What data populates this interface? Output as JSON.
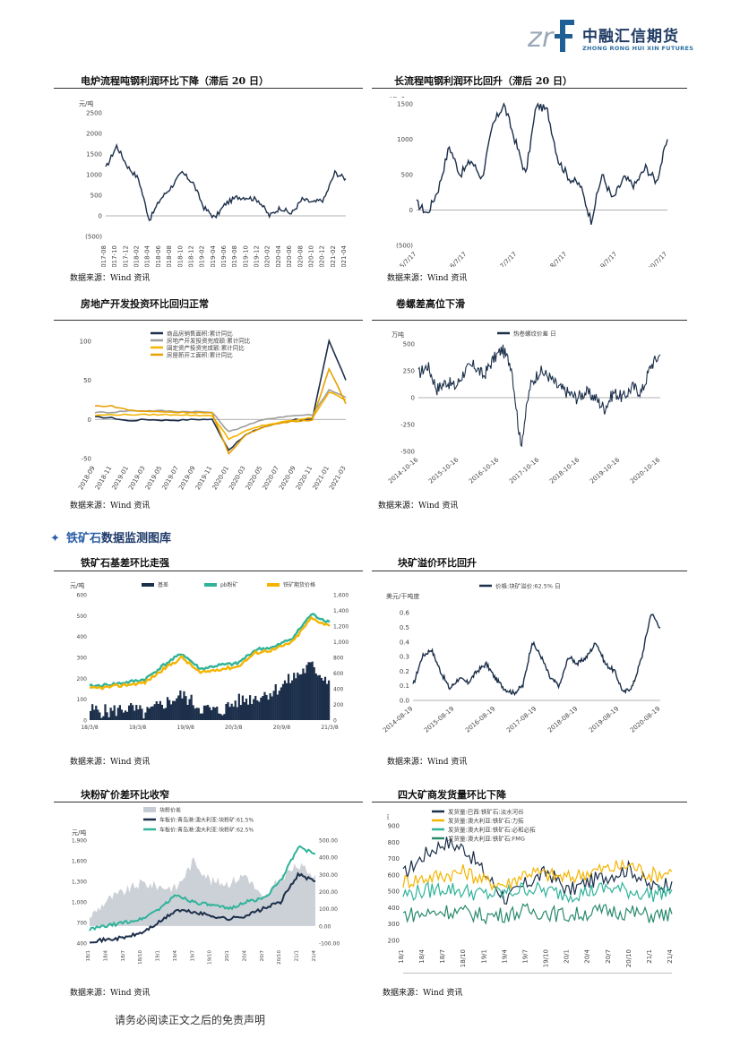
{
  "header": {
    "logo_cn": "中融汇信期货",
    "logo_en": "ZHONG RONG HUI XIN FUTURES",
    "logo_mark": "zrf-logo-mark"
  },
  "panels": [
    {
      "title": "电炉流程吨钢利润环比下降（滞后 20 日）",
      "source": "数据来源：Wind 资讯"
    },
    {
      "title": "长流程吨钢利润环比回升（滞后 20 日）",
      "source": "数据来源：Wind 资讯"
    },
    {
      "title": "房地产开发投资环比回归正常",
      "source": "数据来源：Wind 资讯"
    },
    {
      "title": "卷螺差高位下滑",
      "source": "数据来源：Wind 资讯"
    },
    {
      "title": "铁矿石基差环比走强",
      "source": "数据来源：Wind 资讯"
    },
    {
      "title": "块矿溢价环比回升",
      "source": "数据来源：Wind 资讯"
    },
    {
      "title": "块粉矿价差环比收窄",
      "source": "数据来源：Wind 资讯"
    },
    {
      "title": "四大矿商发货量环比下降",
      "source": "数据来源：Wind 资讯"
    }
  ],
  "section": {
    "bullet": "✦",
    "title_accent": "铁矿石",
    "title_rest": "数据监测图库"
  },
  "footer": {
    "disclaimer": "请务必阅读正文之后的免责声明"
  },
  "chart_data": [
    {
      "type": "line",
      "title": "电炉流程吨钢利润环比下降（滞后 20 日）",
      "ylabel": "元/吨",
      "yticks": [
        "2500",
        "2000",
        "1500",
        "1000",
        "500",
        "0",
        "(500)"
      ],
      "ylim": [
        -500,
        2500
      ],
      "x": [
        "2017-08",
        "2017-10",
        "2017-12",
        "2018-02",
        "2018-04",
        "2018-06",
        "2018-08",
        "2018-10",
        "2018-12",
        "2019-02",
        "2019-04",
        "2019-06",
        "2019-08",
        "2019-10",
        "2019-12",
        "2020-02",
        "2020-04",
        "2020-06",
        "2020-08",
        "2020-10",
        "2020-12",
        "2021-02",
        "2021-04"
      ],
      "series": [
        {
          "values": [
            1150,
            1700,
            1200,
            900,
            -100,
            400,
            700,
            1050,
            800,
            200,
            -50,
            300,
            450,
            450,
            380,
            0,
            200,
            50,
            400,
            320,
            400,
            1050,
            900
          ]
        }
      ],
      "color": "#1c2f4a"
    },
    {
      "type": "line",
      "title": "长流程吨钢利润环比回升（滞后 20 日）",
      "ylabel": "元/吨",
      "yticks": [
        "1500",
        "1000",
        "500",
        "0",
        "(500)"
      ],
      "ylim": [
        -500,
        1500
      ],
      "xticks": [
        "2015/7/17",
        "2016/7/17",
        "2017/7/17",
        "2018/7/17",
        "2019/7/17",
        "2020/7/17"
      ],
      "x": [
        "2015/7",
        "2015/10",
        "2016/1",
        "2016/4",
        "2016/7",
        "2016/10",
        "2017/1",
        "2017/4",
        "2017/7",
        "2017/10",
        "2018/1",
        "2018/4",
        "2018/7",
        "2018/10",
        "2019/1",
        "2019/4",
        "2019/7",
        "2019/10",
        "2020/1",
        "2020/4",
        "2020/7",
        "2020/10",
        "2021/1",
        "2021/4"
      ],
      "series": [
        {
          "values": [
            100,
            -50,
            300,
            900,
            500,
            700,
            450,
            1200,
            1500,
            1000,
            500,
            1500,
            1400,
            700,
            450,
            350,
            -150,
            500,
            150,
            450,
            350,
            600,
            400,
            1000
          ]
        }
      ],
      "color": "#1c2f4a"
    },
    {
      "type": "line",
      "title": "房地产开发投资环比回归正常",
      "ylabel": "%",
      "yticks": [
        "100",
        "50",
        "0",
        "-50"
      ],
      "ylim": [
        -50,
        110
      ],
      "x": [
        "2018-09",
        "2018-11",
        "2019-01",
        "2019-03",
        "2019-05",
        "2019-07",
        "2019-09",
        "2019-11",
        "2020-01",
        "2020-03",
        "2020-05",
        "2020-07",
        "2020-09",
        "2020-11",
        "2021-01",
        "2021-03"
      ],
      "series": [
        {
          "name": "商品房销售面积:累计同比",
          "color": "#1c2f4a",
          "values": [
            3,
            2,
            -2,
            0,
            -1,
            -1,
            0,
            0,
            -39,
            -20,
            -10,
            -5,
            0,
            0,
            100,
            50
          ]
        },
        {
          "name": "房地产开发投资完成额:累计同比",
          "color": "#9e9e9e",
          "values": [
            9,
            9,
            11,
            11,
            11,
            10,
            10,
            9,
            -16,
            -8,
            -1,
            3,
            5,
            6,
            38,
            28
          ]
        },
        {
          "name": "固定资产投资完成额:累计同比",
          "color": "#f5b400",
          "values": [
            5,
            6,
            6,
            6,
            6,
            6,
            5,
            5,
            -25,
            -15,
            -8,
            -4,
            -1,
            2,
            35,
            25
          ]
        },
        {
          "name": "房屋新开工面积:累计同比",
          "color": "#e8a000",
          "values": [
            17,
            17,
            12,
            10,
            10,
            9,
            9,
            8,
            -44,
            -20,
            -10,
            -5,
            -2,
            -1,
            65,
            20
          ]
        }
      ]
    },
    {
      "type": "line",
      "title": "卷螺差高位下滑",
      "ylabel": "万吨",
      "yticks": [
        "500",
        "250",
        "0",
        "-250",
        "-500"
      ],
      "ylim": [
        -500,
        500
      ],
      "xticks": [
        "2014-10-16",
        "2015-10-16",
        "2016-10-16",
        "2017-10-16",
        "2018-10-16",
        "2019-10-16",
        "2020-10-16"
      ],
      "x": [
        "2014/10",
        "2015/1",
        "2015/4",
        "2015/7",
        "2015/10",
        "2016/1",
        "2016/4",
        "2016/7",
        "2016/10",
        "2017/1",
        "2017/4",
        "2017/7",
        "2017/10",
        "2018/1",
        "2018/4",
        "2018/7",
        "2018/10",
        "2019/1",
        "2019/4",
        "2019/7",
        "2019/10",
        "2020/1",
        "2020/4",
        "2020/7",
        "2020/10",
        "2021/1",
        "2021/4"
      ],
      "series": [
        {
          "name": "热卷螺纹价差 日",
          "values": [
            220,
            300,
            80,
            150,
            100,
            250,
            300,
            200,
            350,
            450,
            300,
            -450,
            100,
            250,
            200,
            100,
            50,
            0,
            50,
            0,
            -100,
            50,
            0,
            100,
            50,
            300,
            400
          ]
        }
      ],
      "color": "#1c2f4a"
    },
    {
      "type": "bar",
      "title": "铁矿石基差环比走强",
      "ylabel": "元/吨",
      "yticks_left": [
        "600",
        "500",
        "400",
        "300",
        "200",
        "100",
        "0"
      ],
      "yticks_right": [
        "1,600",
        "1,400",
        "1,200",
        "1,000",
        "800",
        "600",
        "400",
        "200",
        "0"
      ],
      "xticks": [
        "18/3/8",
        "19/3/8",
        "19/9/8",
        "20/3/8",
        "20/9/8",
        "21/3/8"
      ],
      "x": [
        "18/3",
        "18/6",
        "18/9",
        "18/12",
        "19/3",
        "19/6",
        "19/9",
        "19/12",
        "20/3",
        "20/6",
        "20/9",
        "20/12",
        "21/3",
        "21/4"
      ],
      "series": [
        {
          "name": "基差",
          "type": "bar",
          "color": "#1c2f4a",
          "values": [
            50,
            40,
            60,
            30,
            80,
            120,
            60,
            40,
            90,
            110,
            140,
            200,
            260,
            190
          ]
        },
        {
          "name": "pb粉矿",
          "type": "line",
          "color": "#30b39a",
          "values": [
            430,
            450,
            480,
            520,
            700,
            850,
            650,
            700,
            720,
            900,
            930,
            1050,
            1350,
            1250
          ]
        },
        {
          "name": "铁矿期货价格",
          "type": "line",
          "color": "#f5b400",
          "values": [
            400,
            420,
            450,
            480,
            650,
            800,
            600,
            650,
            680,
            860,
            900,
            1000,
            1300,
            1200
          ]
        }
      ]
    },
    {
      "type": "line",
      "title": "块矿溢价环比回升",
      "ylabel": "美元/干吨度",
      "yticks": [
        "0.6",
        "0.5",
        "0.4",
        "0.3",
        "0.2",
        "0.1",
        "0.0"
      ],
      "ylim": [
        0,
        0.65
      ],
      "xticks": [
        "2014-08-19",
        "2015-08-19",
        "2016-08-19",
        "2017-08-19",
        "2018-08-19",
        "2019-08-19",
        "2020-08-19"
      ],
      "x": [
        "2014/8",
        "2014/11",
        "2015/2",
        "2015/5",
        "2015/8",
        "2015/11",
        "2016/2",
        "2016/5",
        "2016/8",
        "2016/11",
        "2017/2",
        "2017/5",
        "2017/8",
        "2017/11",
        "2018/2",
        "2018/5",
        "2018/8",
        "2018/11",
        "2019/2",
        "2019/5",
        "2019/8",
        "2019/11",
        "2020/2",
        "2020/5",
        "2020/8",
        "2020/11",
        "2021/2",
        "2021/4"
      ],
      "series": [
        {
          "name": "价格:块矿溢价:62.5% 日",
          "values": [
            0.1,
            0.3,
            0.35,
            0.2,
            0.08,
            0.15,
            0.12,
            0.2,
            0.25,
            0.15,
            0.08,
            0.05,
            0.1,
            0.4,
            0.3,
            0.15,
            0.1,
            0.3,
            0.25,
            0.3,
            0.4,
            0.25,
            0.2,
            0.05,
            0.1,
            0.3,
            0.6,
            0.5
          ]
        }
      ],
      "color": "#1c2f4a"
    },
    {
      "type": "area",
      "title": "块粉矿价差环比收窄",
      "ylabel": "元/吨",
      "yticks_left": [
        "1,900",
        "1,600",
        "1,300",
        "1,000",
        "700",
        "400"
      ],
      "yticks_right": [
        "500.00",
        "400.00",
        "300.00",
        "200.00",
        "100.00",
        "0.00",
        "-100.00"
      ],
      "x": [
        "18/1",
        "18/4",
        "18/7",
        "18/10",
        "19/1",
        "19/4",
        "19/7",
        "19/10",
        "20/1",
        "20/4",
        "20/7",
        "20/10",
        "21/1",
        "21/4"
      ],
      "series": [
        {
          "name": "块粉价差",
          "type": "area",
          "color": "#c6ccd3",
          "values": [
            50,
            150,
            200,
            250,
            230,
            220,
            380,
            260,
            250,
            300,
            150,
            280,
            350,
            300
          ]
        },
        {
          "name": "车板价:青岛港:澳大利亚:块粉矿:61.5%",
          "type": "line",
          "color": "#1c2f4a",
          "values": [
            430,
            450,
            480,
            550,
            700,
            880,
            850,
            800,
            750,
            800,
            900,
            1000,
            1400,
            1300
          ]
        },
        {
          "name": "车板价:青岛港:澳大利亚:块粉矿:62.5%",
          "type": "line",
          "color": "#30b39a",
          "values": [
            600,
            650,
            700,
            750,
            900,
            1100,
            1000,
            950,
            900,
            1000,
            1050,
            1300,
            1800,
            1700
          ]
        }
      ]
    },
    {
      "type": "line",
      "title": "四大矿商发货量环比下降",
      "ylabel": "万吨",
      "yticks": [
        "900",
        "800",
        "700",
        "600",
        "500",
        "400",
        "300",
        "200"
      ],
      "ylim": [
        200,
        900
      ],
      "x": [
        "18/1",
        "18/4",
        "18/7",
        "18/10",
        "19/1",
        "19/4",
        "19/7",
        "19/10",
        "20/1",
        "20/4",
        "20/7",
        "20/10",
        "21/1",
        "21/4"
      ],
      "series": [
        {
          "name": "发货量:巴西:铁矿石:淡水河谷",
          "color": "#1c2f4a",
          "values": [
            600,
            720,
            800,
            760,
            600,
            450,
            550,
            620,
            500,
            560,
            600,
            640,
            520,
            560
          ]
        },
        {
          "name": "发货量:澳大利亚:铁矿石:力拓",
          "color": "#f5b400",
          "values": [
            560,
            580,
            600,
            620,
            560,
            540,
            620,
            600,
            580,
            620,
            640,
            660,
            600,
            620
          ]
        },
        {
          "name": "发货量:澳大利亚:铁矿石:必和必拓",
          "color": "#30b39a",
          "values": [
            480,
            500,
            520,
            500,
            480,
            490,
            520,
            500,
            480,
            500,
            520,
            500,
            480,
            510
          ]
        },
        {
          "name": "发货量:澳大利亚:铁矿石:FMG",
          "color": "#2a8a6e",
          "values": [
            360,
            360,
            380,
            370,
            350,
            360,
            380,
            370,
            350,
            370,
            380,
            370,
            350,
            360
          ]
        }
      ]
    }
  ]
}
